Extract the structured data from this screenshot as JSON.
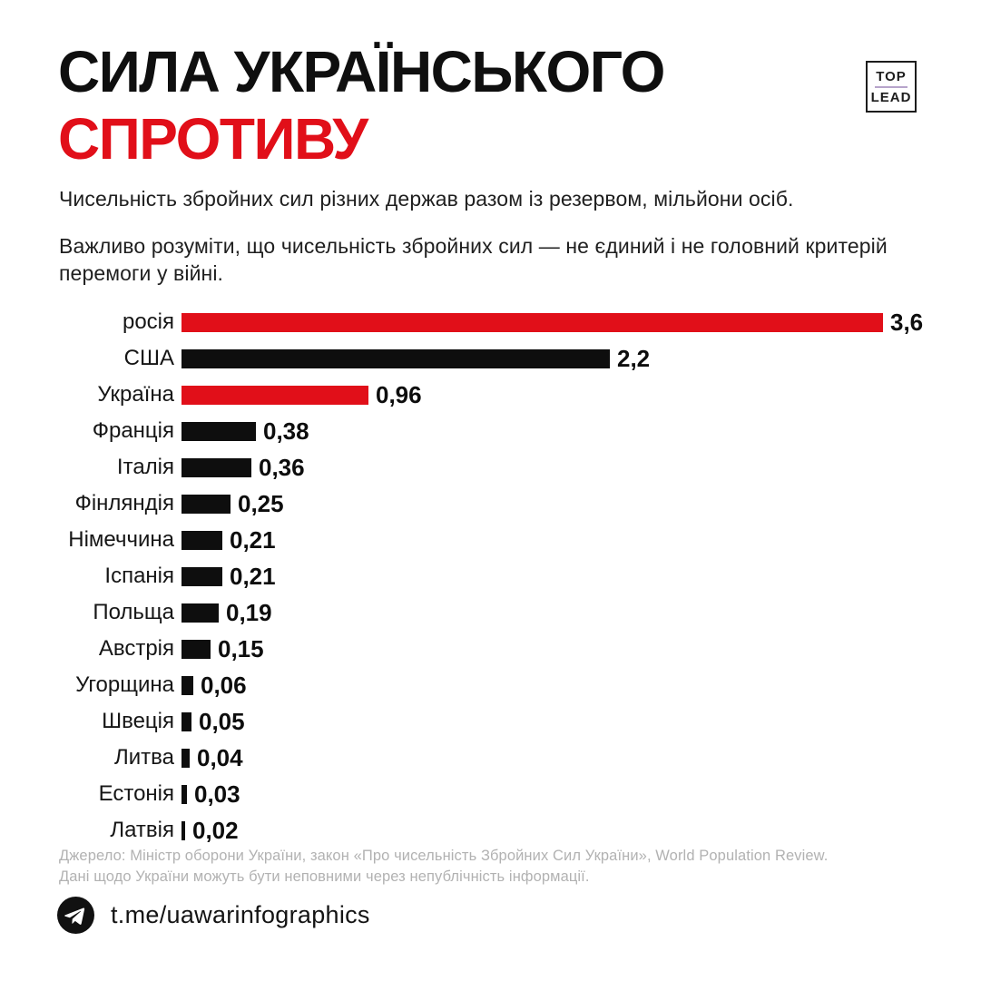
{
  "header": {
    "title_line1": "СИЛА УКРАЇНСЬКОГО",
    "title_line2": "СПРОТИВУ",
    "logo_top": "TOP",
    "logo_lead": "LEAD"
  },
  "subtitle": "Чисельність збройних сил різних держав разом із резервом, мільйони осіб.",
  "note": "Важливо розуміти, що чисельність збройних сил — не єдиний і не головний критерій перемоги у війні.",
  "chart_data": {
    "type": "bar",
    "orientation": "horizontal",
    "title": "Сила українського спротиву",
    "xlabel": "мільйони осіб",
    "xlim": [
      0,
      3.6
    ],
    "grid": false,
    "categories": [
      "росія",
      "США",
      "Україна",
      "Франція",
      "Італія",
      "Фінляндія",
      "Німеччина",
      "Іспанія",
      "Польща",
      "Австрія",
      "Угорщина",
      "Швеція",
      "Литва",
      "Естонія",
      "Латвія"
    ],
    "values": [
      3.6,
      2.2,
      0.96,
      0.38,
      0.36,
      0.25,
      0.21,
      0.21,
      0.19,
      0.15,
      0.06,
      0.05,
      0.04,
      0.03,
      0.02
    ],
    "value_labels": [
      "3,6",
      "2,2",
      "0,96",
      "0,38",
      "0,36",
      "0,25",
      "0,21",
      "0,21",
      "0,19",
      "0,15",
      "0,06",
      "0,05",
      "0,04",
      "0,03",
      "0,02"
    ],
    "bar_colors": [
      "#e10f19",
      "#0e0e0e",
      "#e10f19",
      "#0e0e0e",
      "#0e0e0e",
      "#0e0e0e",
      "#0e0e0e",
      "#0e0e0e",
      "#0e0e0e",
      "#0e0e0e",
      "#0e0e0e",
      "#0e0e0e",
      "#0e0e0e",
      "#0e0e0e",
      "#0e0e0e"
    ]
  },
  "footer": {
    "source_line1": "Джерело: Міністр оборони України, закон «Про чисельність Збройних Сил України», World Population Review.",
    "source_line2": "Дані щодо України можуть бути неповними через непублічність інформації.",
    "telegram": "t.me/uawarinfographics"
  },
  "colors": {
    "accent_red": "#e10f19",
    "bar_black": "#0e0e0e",
    "source_gray": "#b2b2b2",
    "logo_line_lilac": "#b7a4cb"
  }
}
